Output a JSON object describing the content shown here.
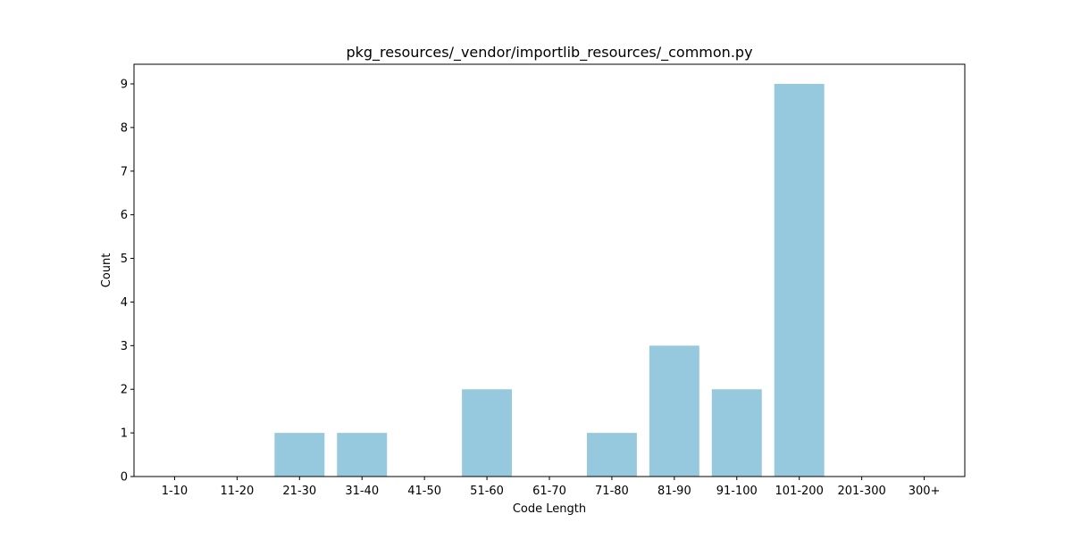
{
  "chart_data": {
    "type": "bar",
    "title": "pkg_resources/_vendor/importlib_resources/_common.py",
    "xlabel": "Code Length",
    "ylabel": "Count",
    "categories": [
      "1-10",
      "11-20",
      "21-30",
      "31-40",
      "41-50",
      "51-60",
      "61-70",
      "71-80",
      "81-90",
      "91-100",
      "101-200",
      "201-300",
      "300+"
    ],
    "values": [
      0,
      0,
      1,
      1,
      0,
      2,
      0,
      1,
      3,
      2,
      9,
      0,
      0
    ],
    "ylim": [
      0,
      9.45
    ],
    "yticks": [
      0,
      1,
      2,
      3,
      4,
      5,
      6,
      7,
      8,
      9
    ],
    "grid": false,
    "bar_color": "#96c9dd"
  }
}
